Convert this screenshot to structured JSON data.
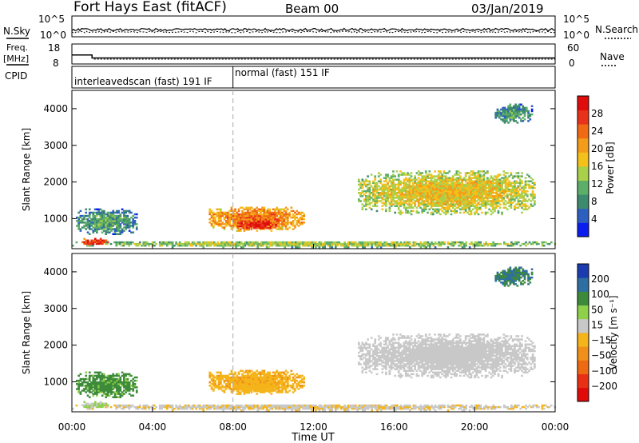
{
  "header": {
    "radar": "Fort Hays East (fitACF)",
    "beam": "Beam 00",
    "date": "03/Jan/2019"
  },
  "side_labels": {
    "nsky": "N.Sky",
    "freq": "Freq.",
    "freq_unit": "[MHz]",
    "cpid": "CPID",
    "nsearch": "N.Search",
    "nave": "Nave"
  },
  "noise_panel": {
    "left_ticks": [
      "10^5",
      "10^0"
    ],
    "right_ticks": [
      "10^5",
      "10^0"
    ]
  },
  "freq_panel": {
    "left_ticks": [
      "18",
      "8"
    ],
    "right_ticks": [
      "60",
      "0"
    ]
  },
  "cpid_panel": {
    "modes": [
      {
        "label": "interleavedscan (fast) 191 IF",
        "start": 0,
        "end": 8
      },
      {
        "label": "normal (fast) 151 IF",
        "start": 8,
        "end": 24
      }
    ]
  },
  "axes": {
    "xlabel": "Time UT",
    "x_ticks": [
      "00:00",
      "04:00",
      "08:00",
      "12:00",
      "16:00",
      "20:00",
      "00:00"
    ],
    "ylabel": "Slant Range [km]",
    "y_ticks": [
      "1000",
      "2000",
      "3000",
      "4000"
    ]
  },
  "colorbars": {
    "power": {
      "label": "Power [dB]",
      "ticks": [
        "4",
        "8",
        "12",
        "16",
        "20",
        "24",
        "28"
      ],
      "colors": [
        "#0a1ef0",
        "#2d5fc0",
        "#3d8a6e",
        "#5cae68",
        "#a8d04a",
        "#f4c01a",
        "#f39c1a",
        "#f06a14",
        "#e8321a",
        "#e00c0c"
      ]
    },
    "velocity": {
      "label": "Velocity [m s⁻¹]",
      "ticks": [
        "200",
        "100",
        "50",
        "15",
        "−15",
        "−50",
        "−100",
        "−200"
      ],
      "colors": [
        "#1a3cb0",
        "#2e6ea0",
        "#3d8a3a",
        "#8ed04a",
        "#c8c8c8",
        "#f4b41a",
        "#f0901a",
        "#ee6a12",
        "#e83014",
        "#e00a0a"
      ]
    }
  },
  "chart_data": {
    "type": "heatmap",
    "title": "Fort Hays East (fitACF)   Beam 00   03/Jan/2019",
    "xlabel": "Time UT",
    "ylabel": "Slant Range [km]",
    "xlim": [
      0,
      24
    ],
    "ylim": [
      180,
      4500
    ],
    "x_unit": "hours UT",
    "marker_time": 8.0,
    "frequency_mhz": [
      {
        "start": 0,
        "end": 1.0,
        "value": 12.5
      },
      {
        "start": 1.0,
        "end": 24,
        "value": 11.0
      }
    ],
    "echo_regions": [
      {
        "name": "near-range ground scatter band",
        "t": [
          0,
          24
        ],
        "range_km": [
          200,
          380
        ],
        "power_db": 14,
        "velocity": -10
      },
      {
        "name": "early ionospheric patch",
        "t": [
          0.2,
          3.2
        ],
        "range_km": [
          560,
          1260
        ],
        "power_db": 10,
        "velocity": 60
      },
      {
        "name": "early strong patch",
        "t": [
          0.3,
          1.8
        ],
        "range_km": [
          250,
          450
        ],
        "power_db": 27,
        "velocity": 20
      },
      {
        "name": "mid-morning patch",
        "t": [
          6.8,
          11.5
        ],
        "range_km": [
          650,
          1300
        ],
        "power_db": 22,
        "velocity": -40
      },
      {
        "name": "strong core",
        "t": [
          8.2,
          10.2
        ],
        "range_km": [
          680,
          950
        ],
        "power_db": 28,
        "velocity": -30
      },
      {
        "name": "afternoon band",
        "t": [
          14.2,
          23.0
        ],
        "range_km": [
          1100,
          2300
        ],
        "power_db": 17,
        "velocity": 0
      },
      {
        "name": "far-range scatter",
        "t": [
          21.0,
          22.8
        ],
        "range_km": [
          3600,
          4100
        ],
        "power_db": 10,
        "velocity": 100
      }
    ]
  }
}
